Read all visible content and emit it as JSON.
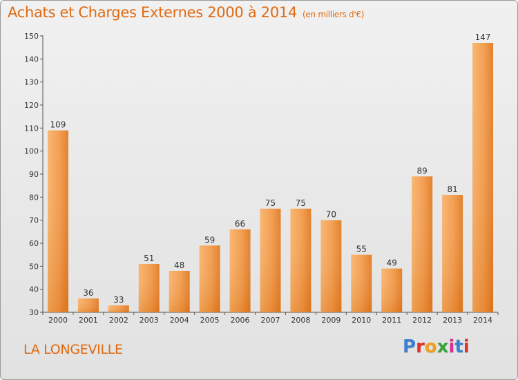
{
  "title": "Achats et Charges Externes 2000 à 2014",
  "unit": "(en milliers d'€)",
  "commune": "LA LONGEVILLE",
  "logo": {
    "text": "Proxiti",
    "colors": [
      "#3a7fd0",
      "#e0302a",
      "#f0a020",
      "#3aa43a",
      "#d62f8f",
      "#3a7fd0",
      "#e0302a"
    ]
  },
  "colors": {
    "accent": "#e06a10",
    "bar_light": "#f7a95a",
    "bar_dark": "#e27b22"
  },
  "chart_data": {
    "type": "bar",
    "categories": [
      "2000",
      "2001",
      "2002",
      "2003",
      "2004",
      "2005",
      "2006",
      "2007",
      "2008",
      "2009",
      "2010",
      "2011",
      "2012",
      "2013",
      "2014"
    ],
    "values": [
      109,
      36,
      33,
      51,
      48,
      59,
      66,
      75,
      75,
      70,
      55,
      49,
      89,
      81,
      147
    ],
    "ylim": [
      30,
      150
    ],
    "yticks": [
      30,
      40,
      50,
      60,
      70,
      80,
      90,
      100,
      110,
      120,
      130,
      140,
      150
    ],
    "grid": false,
    "data_labels": true
  }
}
